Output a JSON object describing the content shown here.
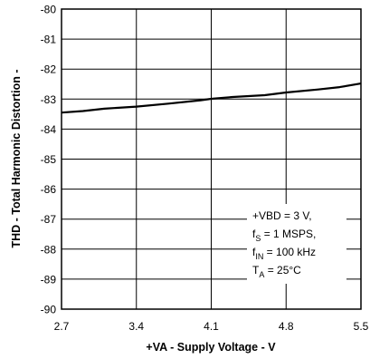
{
  "chart_data": {
    "type": "line",
    "title": "",
    "xlabel": "+VA - Supply Voltage - V",
    "ylabel": "THD - Total Harmonic Distortion -",
    "xlim": [
      2.7,
      5.5
    ],
    "ylim": [
      -90,
      -80
    ],
    "x_ticks": [
      "2.7",
      "3.4",
      "4.1",
      "4.8",
      "5.5"
    ],
    "y_ticks": [
      "-80",
      "-81",
      "-82",
      "-83",
      "-84",
      "-85",
      "-86",
      "-87",
      "-88",
      "-89",
      "-90"
    ],
    "grid": true,
    "series": [
      {
        "x": [
          2.7,
          2.9,
          3.1,
          3.4,
          3.7,
          4.0,
          4.1,
          4.3,
          4.6,
          4.8,
          5.1,
          5.3,
          5.5
        ],
        "y": [
          -83.45,
          -83.4,
          -83.32,
          -83.25,
          -83.15,
          -83.04,
          -82.99,
          -82.93,
          -82.87,
          -82.78,
          -82.68,
          -82.6,
          -82.48
        ]
      }
    ],
    "annotation": {
      "lines": [
        {
          "main": "+VBD = 3 V,",
          "sub": "",
          "rest": ""
        },
        {
          "main": "f",
          "sub": "S",
          "rest": " = 1 MSPS,"
        },
        {
          "main": "f",
          "sub": "IN",
          "rest": " = 100 kHz"
        },
        {
          "main": "T",
          "sub": "A",
          "rest": " = 25°C"
        }
      ]
    }
  }
}
